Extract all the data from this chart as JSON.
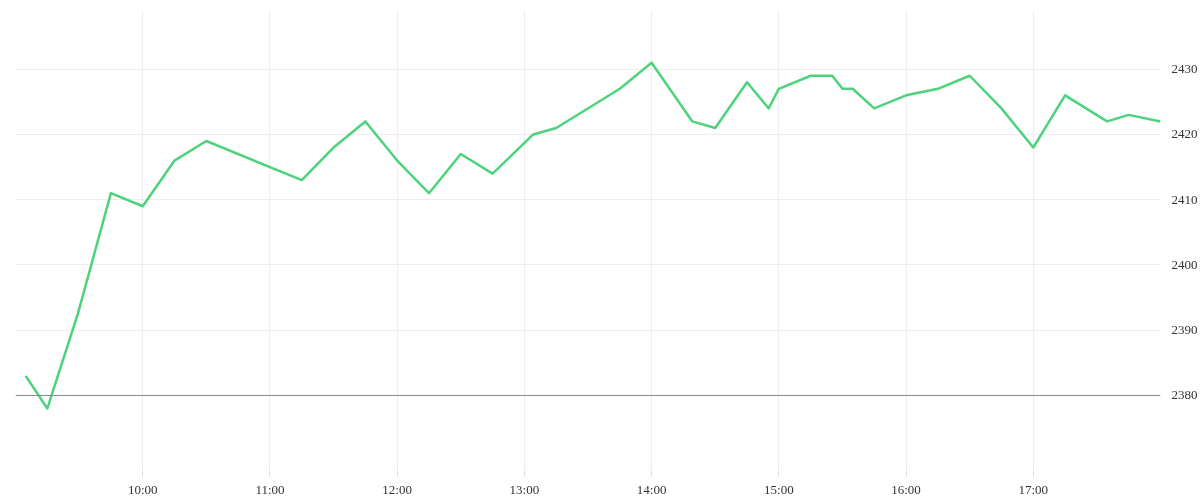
{
  "chart_data": {
    "type": "line",
    "x": [
      9.08,
      9.25,
      9.49,
      9.75,
      10.0,
      10.25,
      10.5,
      11.25,
      11.5,
      11.75,
      12.0,
      12.25,
      12.5,
      12.75,
      13.07,
      13.25,
      13.75,
      14.0,
      14.32,
      14.5,
      14.75,
      14.92,
      15.0,
      15.25,
      15.42,
      15.5,
      15.58,
      15.75,
      16.0,
      16.25,
      16.5,
      16.75,
      17.0,
      17.25,
      17.58,
      17.75,
      18.0
    ],
    "series": [
      {
        "color": "#4cd37b",
        "values": [
          2383,
          2378,
          2392.5,
          2411,
          2409,
          2416,
          2419,
          2413,
          2418,
          2422,
          2416,
          2411,
          2417,
          2414,
          2420,
          2421,
          2427,
          2431,
          2422,
          2421,
          2428,
          2424,
          2427,
          2429,
          2429,
          2427,
          2427,
          2424,
          2426,
          2427,
          2429,
          2424,
          2418,
          2426,
          2422,
          2423,
          2422
        ]
      }
    ],
    "xlim": [
      9.0,
      18.0
    ],
    "xticks": [
      {
        "value": 10,
        "label": "10:00"
      },
      {
        "value": 11,
        "label": "11:00"
      },
      {
        "value": 12,
        "label": "12:00"
      },
      {
        "value": 13,
        "label": "13:00"
      },
      {
        "value": 14,
        "label": "14:00"
      },
      {
        "value": 15,
        "label": "15:00"
      },
      {
        "value": 16,
        "label": "16:00"
      },
      {
        "value": 17,
        "label": "17:00"
      }
    ],
    "ylim": [
      2368.5,
      2439
    ],
    "yticks": [
      2380,
      2390,
      2400,
      2410,
      2420,
      2430
    ],
    "ref_lines": [
      {
        "axis": "y",
        "value": 2380,
        "color": "#888888"
      }
    ],
    "grid": true,
    "marker": "none",
    "line_style": "solid"
  }
}
